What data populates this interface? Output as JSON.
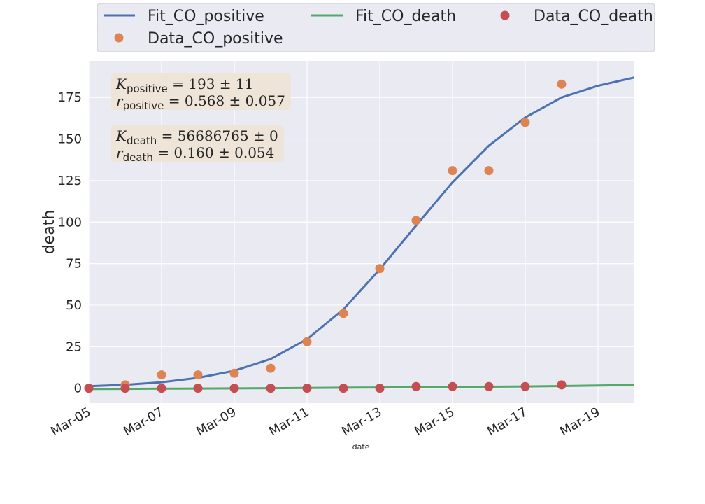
{
  "chart_data": {
    "type": "line",
    "xlabel": "date",
    "ylabel": "death",
    "x_ticks": [
      "Mar-05",
      "Mar-07",
      "Mar-09",
      "Mar-11",
      "Mar-13",
      "Mar-15",
      "Mar-17",
      "Mar-19"
    ],
    "y_ticks": [
      "0",
      "25",
      "50",
      "75",
      "100",
      "125",
      "150",
      "175"
    ],
    "xlim": [
      "2020-03-05",
      "2020-03-20"
    ],
    "ylim": [
      -9,
      197
    ],
    "grid": true,
    "legend_position": "top",
    "series": [
      {
        "name": "Fit_CO_positive",
        "kind": "line",
        "color": "#4c72b0",
        "x": [
          "2020-03-05",
          "2020-03-06",
          "2020-03-07",
          "2020-03-08",
          "2020-03-09",
          "2020-03-10",
          "2020-03-11",
          "2020-03-12",
          "2020-03-13",
          "2020-03-14",
          "2020-03-15",
          "2020-03-16",
          "2020-03-17",
          "2020-03-18",
          "2020-03-19",
          "2020-03-20"
        ],
        "y": [
          1.2,
          2.1,
          3.6,
          6.2,
          10.5,
          17.6,
          29.5,
          47.5,
          71.5,
          98.0,
          124.0,
          146.0,
          163.0,
          175.0,
          182.0,
          187.0
        ]
      },
      {
        "name": "Fit_CO_death",
        "kind": "line",
        "color": "#55a868",
        "x": [
          "2020-03-05",
          "2020-03-06",
          "2020-03-07",
          "2020-03-08",
          "2020-03-09",
          "2020-03-10",
          "2020-03-11",
          "2020-03-12",
          "2020-03-13",
          "2020-03-14",
          "2020-03-15",
          "2020-03-16",
          "2020-03-17",
          "2020-03-18",
          "2020-03-19",
          "2020-03-20"
        ],
        "y": [
          -0.5,
          -0.4,
          -0.3,
          -0.2,
          -0.1,
          0.0,
          0.15,
          0.3,
          0.45,
          0.6,
          0.75,
          0.9,
          1.05,
          1.3,
          1.6,
          2.0
        ]
      },
      {
        "name": "Data_CO_death",
        "kind": "scatter",
        "color": "#c44e52",
        "x": [
          "2020-03-05",
          "2020-03-06",
          "2020-03-07",
          "2020-03-08",
          "2020-03-09",
          "2020-03-10",
          "2020-03-11",
          "2020-03-12",
          "2020-03-13",
          "2020-03-14",
          "2020-03-15",
          "2020-03-16",
          "2020-03-17",
          "2020-03-18"
        ],
        "y": [
          0,
          0,
          0,
          0,
          0,
          0,
          0,
          0,
          0,
          1,
          1,
          1,
          1,
          2
        ]
      },
      {
        "name": "Data_CO_positive",
        "kind": "scatter",
        "color": "#dd8452",
        "x": [
          "2020-03-05",
          "2020-03-06",
          "2020-03-07",
          "2020-03-08",
          "2020-03-09",
          "2020-03-10",
          "2020-03-11",
          "2020-03-12",
          "2020-03-13",
          "2020-03-14",
          "2020-03-15",
          "2020-03-16",
          "2020-03-17",
          "2020-03-18"
        ],
        "y": [
          0,
          2,
          8,
          8,
          9,
          12,
          28,
          45,
          72,
          101,
          131,
          131,
          160,
          183
        ]
      }
    ],
    "annotations": [
      {
        "lines": [
          {
            "sym": "K",
            "sub": "positive",
            "text": " = 193 ± 11"
          },
          {
            "sym": "r",
            "sub": "positive",
            "text": " = 0.568 ± 0.057"
          }
        ]
      },
      {
        "lines": [
          {
            "sym": "K",
            "sub": "death",
            "text": " = 56686765 ± 0"
          },
          {
            "sym": "r",
            "sub": "death",
            "text": " = 0.160 ± 0.054"
          }
        ]
      }
    ]
  },
  "colors": {
    "plot_background": "#eaeaf2",
    "grid": "#ffffff",
    "annotation_box": "#efe3d2",
    "text": "#262626"
  }
}
